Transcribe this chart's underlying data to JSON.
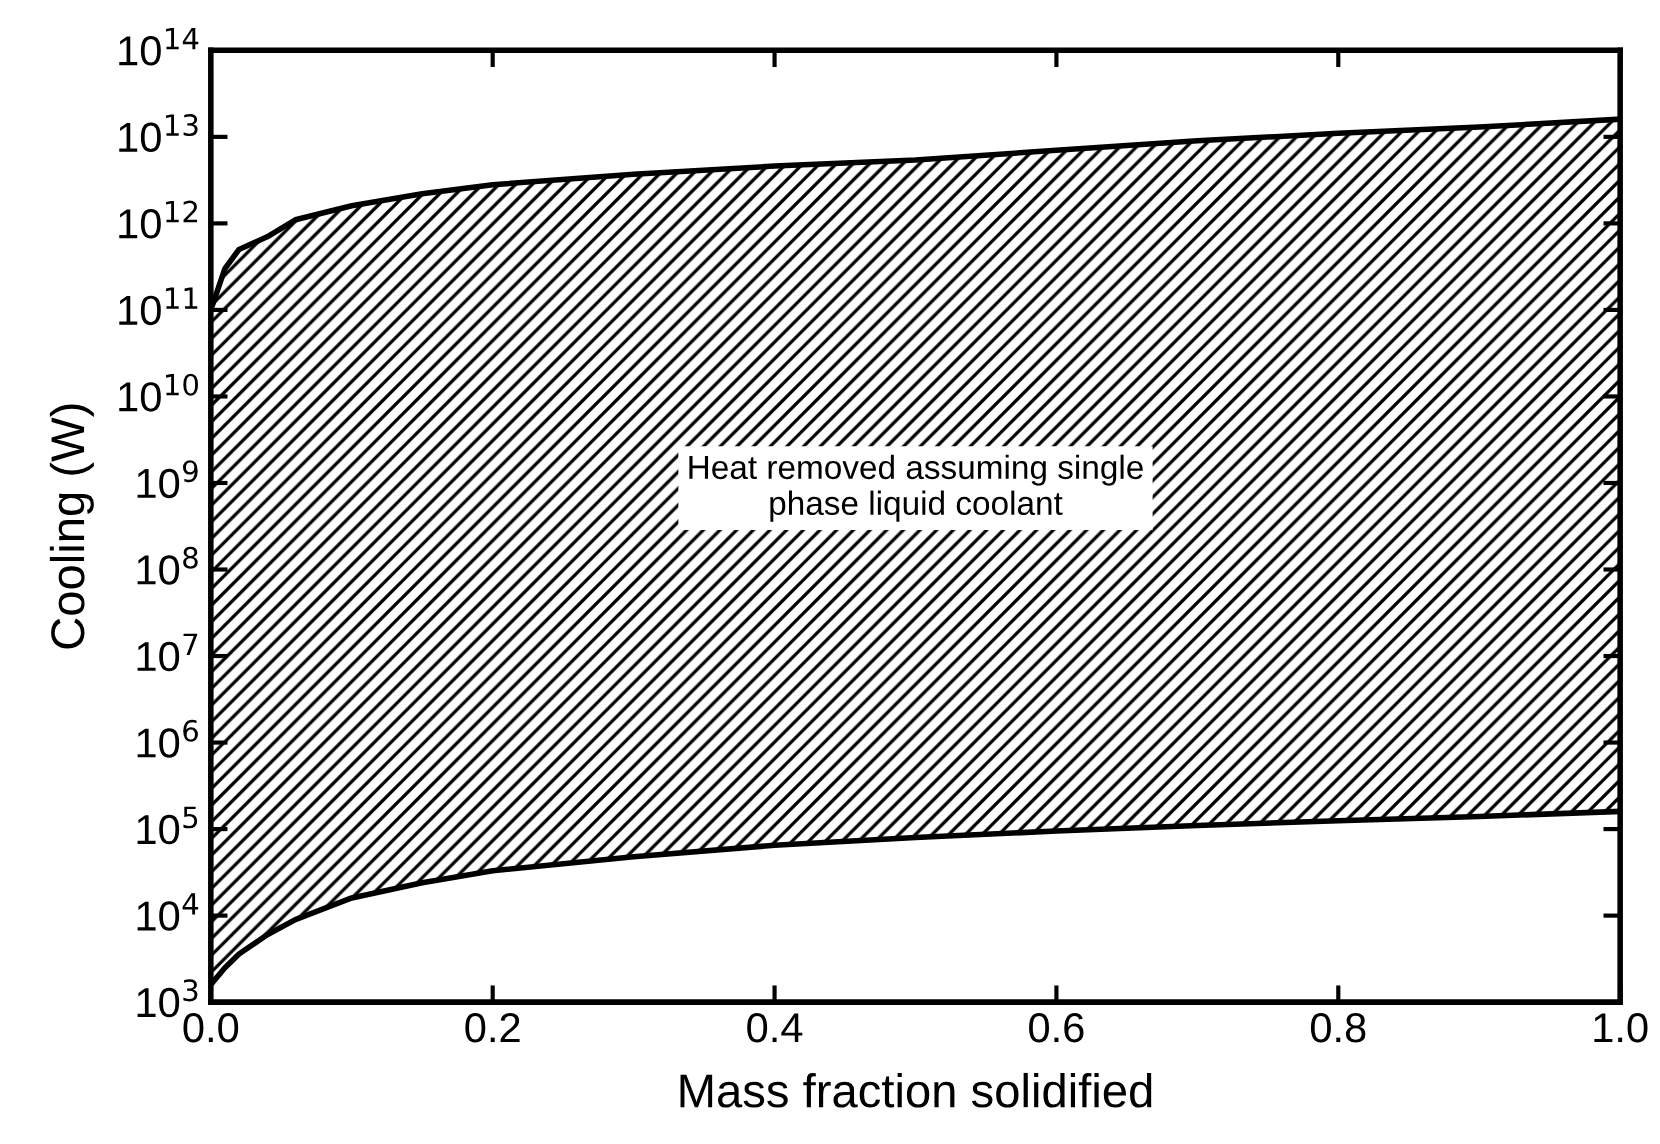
{
  "chart_data": {
    "type": "area",
    "xlabel": "Mass fraction solidified",
    "ylabel": "Cooling (W)",
    "log": "y",
    "xlim": [
      0,
      1
    ],
    "ylim": [
      1000,
      100000000000000
    ],
    "xticks": [
      {
        "value": 0,
        "label": "0.0"
      },
      {
        "value": 0.2,
        "label": "0.2"
      },
      {
        "value": 0.4,
        "label": "0.4"
      },
      {
        "value": 0.6,
        "label": "0.6"
      },
      {
        "value": 0.8,
        "label": "0.8"
      },
      {
        "value": 1,
        "label": "1.0"
      }
    ],
    "yticks": [
      {
        "value": 1000,
        "label": "10$^{3}$"
      },
      {
        "value": 10000,
        "label": "10$^{4}$"
      },
      {
        "value": 100000,
        "label": "10$^{5}$"
      },
      {
        "value": 1000000,
        "label": "10$^{6}$"
      },
      {
        "value": 10000000,
        "label": "10$^{7}$"
      },
      {
        "value": 100000000,
        "label": "10$^{8}$"
      },
      {
        "value": 1000000000,
        "label": "10$^{9}$"
      },
      {
        "value": 10000000000,
        "label": "10$^{10}$"
      },
      {
        "value": 100000000000,
        "label": "10$^{11}$"
      },
      {
        "value": 1000000000000,
        "label": "10$^{12}$"
      },
      {
        "value": 10000000000000,
        "label": "10$^{13}$"
      },
      {
        "value": 100000000000000,
        "label": "10$^{14}$"
      }
    ],
    "x": [
      0,
      0.01,
      0.02,
      0.04,
      0.06,
      0.1,
      0.15,
      0.2,
      0.3,
      0.4,
      0.5,
      0.6,
      0.7,
      0.8,
      0.9,
      1.0
    ],
    "series": [
      {
        "type": "line",
        "color": "#000000",
        "values": [
          1600,
          2500,
          3600,
          6000,
          9000,
          16000,
          24000,
          33000,
          48000,
          65000,
          80000,
          95000,
          110000,
          125000,
          140000,
          160000
        ]
      },
      {
        "color": "#000000",
        "values": [
          100000000000.0,
          300000000000.0,
          500000000000.0,
          700000000000.0,
          1100000000000.0,
          1600000000000.0,
          2200000000000.0,
          2800000000000.0,
          3700000000000.0,
          4600000000000.0,
          5400000000000.0,
          7000000000000.0,
          9000000000000.0,
          11000000000000.0,
          13000000000000.0,
          16000000000000.0
        ]
      }
    ],
    "annotations": [
      "Heat removed assuming single\nphase liquid coolant"
    ],
    "grid": false
  }
}
